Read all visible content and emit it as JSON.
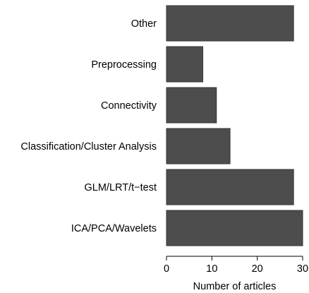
{
  "chart_data": {
    "type": "bar",
    "orientation": "horizontal",
    "categories": [
      "Other",
      "Preprocessing",
      "Connectivity",
      "Classification/Cluster Analysis",
      "GLM/LRT/t−test",
      "ICA/PCA/Wavelets"
    ],
    "values": [
      28,
      8,
      11,
      14,
      28,
      30
    ],
    "xlabel": "Number of articles",
    "ylabel": "",
    "xlim": [
      0,
      30
    ],
    "xticks": [
      "0",
      "10",
      "20",
      "30"
    ],
    "grid": false,
    "bar_color": "#4d4d4d"
  }
}
